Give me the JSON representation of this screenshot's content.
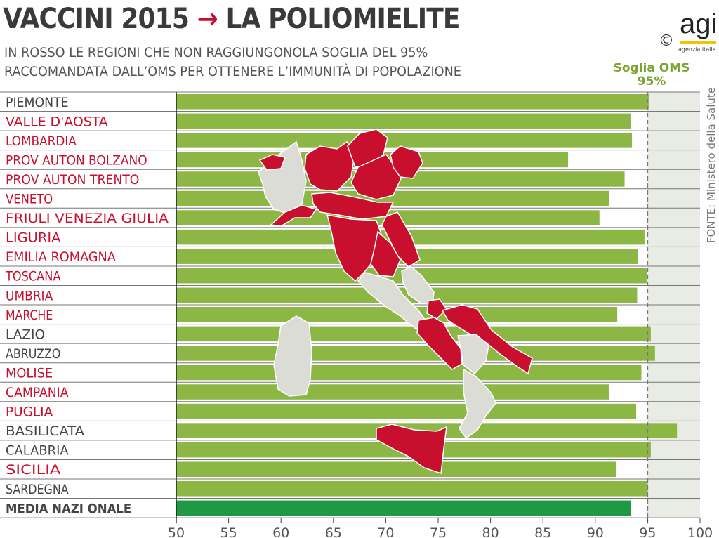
{
  "header": {
    "title_left": "VACCINI 2015",
    "title_arrow": "→",
    "title_right": "LA POLIOMIELITE",
    "subtitle_line1": "IN ROSSO LE REGIONI CHE NON RAGGIUNGONOLA SOGLIA DEL 95%",
    "subtitle_line2": "RACCOMANDATA DALL’OMS PER OTTENERE L’IMMUNITÀ DI POPOLAZIONE"
  },
  "logo": {
    "copyright": "©",
    "name": "agi",
    "tagline": "agenzia italia"
  },
  "source": "FONTE: Ministero della Salute",
  "colors": {
    "bar": "#8db744",
    "bar_national": "#1e9a45",
    "label_red": "#c8102e",
    "label_gray": "#444444",
    "map_red": "#c8102e",
    "map_gray": "#dcdcd6",
    "threshold_zone": "#e9ece4"
  },
  "chart_data": {
    "type": "bar",
    "orientation": "horizontal",
    "threshold": {
      "value": 95,
      "label_line1": "Soglia OMS",
      "label_line2": "95%"
    },
    "xlim": [
      50,
      100
    ],
    "ticks": [
      "50",
      "55",
      "60",
      "65",
      "70",
      "75",
      "80",
      "85",
      "90",
      "95",
      "100"
    ],
    "tick_values": [
      50,
      55,
      60,
      65,
      70,
      75,
      80,
      85,
      90,
      95,
      100
    ],
    "categories": [
      "PIEMONTE",
      "VALLE D'AOSTA",
      "LOMBARDIA",
      "PROV AUTON BOLZANO",
      "PROV AUTON TRENTO",
      "VENETO",
      "FRIULI VENEZIA GIULIA",
      "LIGURIA",
      "EMILIA ROMAGNA",
      "TOSCANA",
      "UMBRIA",
      "MARCHE",
      "LAZIO",
      "ABRUZZO",
      "MOLISE",
      "CAMPANIA",
      "PUGLIA",
      "BASILICATA",
      "CALABRIA",
      "SICILIA",
      "SARDEGNA",
      "MEDIA NAZI ONALE"
    ],
    "values": [
      95.1,
      93.4,
      93.5,
      87.4,
      92.8,
      91.3,
      90.4,
      94.7,
      94.1,
      94.9,
      94.0,
      92.1,
      95.3,
      95.7,
      94.4,
      91.3,
      93.9,
      97.8,
      95.3,
      92.0,
      95.0,
      93.4
    ],
    "below_threshold": [
      false,
      true,
      true,
      true,
      true,
      true,
      true,
      true,
      true,
      true,
      true,
      true,
      false,
      false,
      true,
      true,
      true,
      false,
      false,
      true,
      false,
      false
    ]
  }
}
